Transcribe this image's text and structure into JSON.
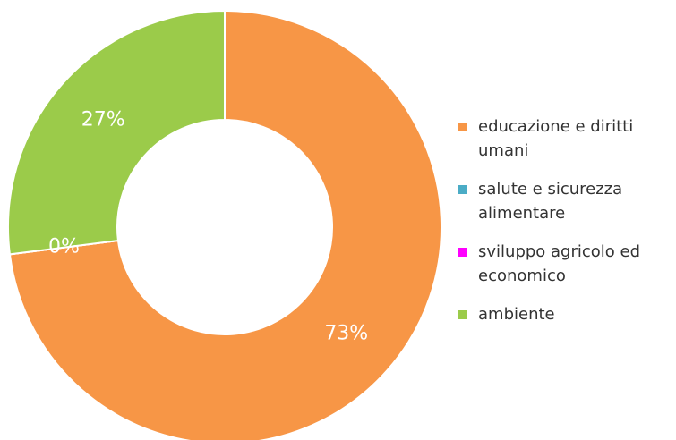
{
  "chart_data": {
    "type": "pie",
    "variant": "donut",
    "categories": [
      "educazione e diritti umani",
      "salute e sicurezza alimentare",
      "sviluppo agricolo ed economico",
      "ambiente"
    ],
    "values": [
      73,
      0,
      0,
      27
    ],
    "labels": [
      "73%",
      "",
      "0%",
      "27%"
    ],
    "colors": [
      "#F79646",
      "#4BACC6",
      "#FF00FF",
      "#9BCB4A"
    ],
    "legend_position": "right"
  },
  "legend": {
    "items": [
      {
        "line1": "educazione e diritti",
        "line2": "umani",
        "color": "#F79646"
      },
      {
        "line1": "salute e sicurezza",
        "line2": "alimentare",
        "color": "#4BACC6"
      },
      {
        "line1": "sviluppo agricolo ed",
        "line2": "economico",
        "color": "#FF00FF"
      },
      {
        "line1": "ambiente",
        "line2": "",
        "color": "#9BCB4A"
      }
    ]
  }
}
